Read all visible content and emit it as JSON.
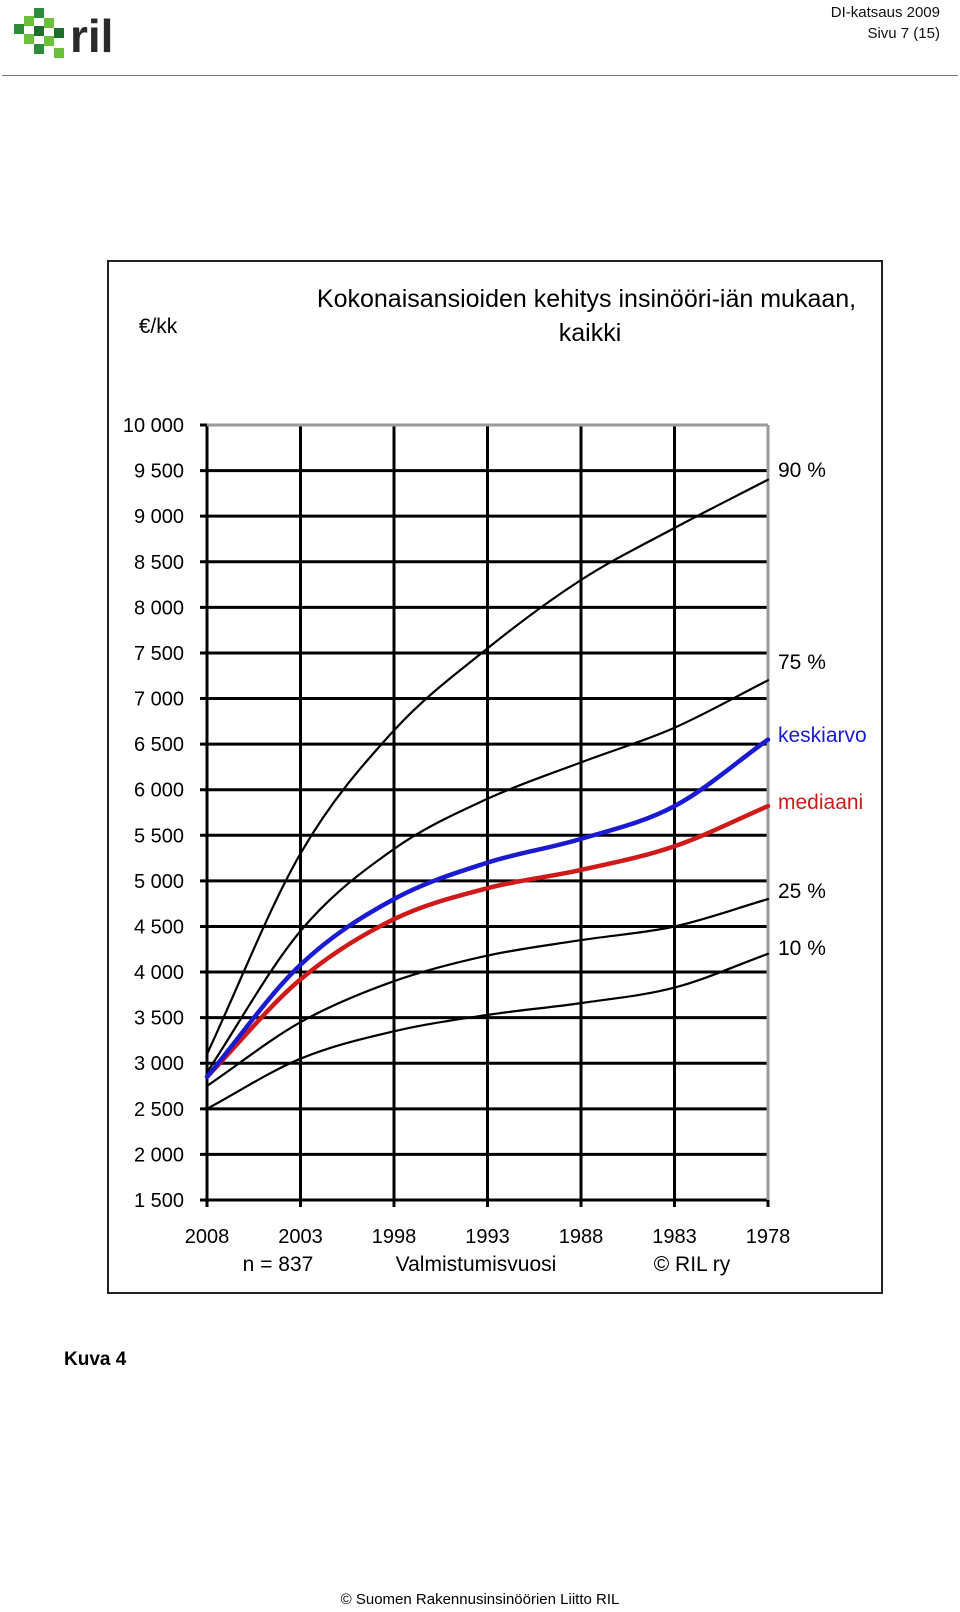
{
  "header": {
    "logo_text": "ril",
    "doc_title": "DI-katsaus 2009",
    "page_label": "Sivu 7 (15)"
  },
  "chart_data": {
    "type": "line",
    "title": "Kokonaisansioiden kehitys insinööri-iän mukaan, kaikki",
    "ylabel": "€/kk",
    "xlabel": "Valmistumisvuosi",
    "notes": [
      "n = 837",
      "© RIL ry"
    ],
    "x_ticks": [
      "2008",
      "2003",
      "1998",
      "1993",
      "1988",
      "1983",
      "1978"
    ],
    "x": [
      2008,
      2003,
      1998,
      1993,
      1988,
      1983,
      1978
    ],
    "xlim": [
      2008,
      1978
    ],
    "ylim": [
      1500,
      10000
    ],
    "y_ticks": [
      1500,
      2000,
      2500,
      3000,
      3500,
      4000,
      4500,
      5000,
      5500,
      6000,
      6500,
      7000,
      7500,
      8000,
      8500,
      9000,
      9500,
      10000
    ],
    "y_tick_labels": [
      "1 500",
      "2 000",
      "2 500",
      "3 000",
      "3 500",
      "4 000",
      "4 500",
      "5 000",
      "5 500",
      "6 000",
      "6 500",
      "7 000",
      "7 500",
      "8 000",
      "8 500",
      "9 000",
      "9 500",
      "10 000"
    ],
    "grid": true,
    "legend": "right",
    "series": [
      {
        "name": "90 %",
        "color": "#000000",
        "values": [
          3100,
          5300,
          6650,
          7550,
          8300,
          8870,
          9400
        ]
      },
      {
        "name": "75 %",
        "color": "#000000",
        "values": [
          2900,
          4450,
          5350,
          5900,
          6300,
          6680,
          7200
        ]
      },
      {
        "name": "keskiarvo",
        "color": "#1a1ad0",
        "values": [
          2850,
          4080,
          4800,
          5200,
          5460,
          5820,
          6550
        ]
      },
      {
        "name": "mediaani",
        "color": "#d01a1a",
        "values": [
          2850,
          3920,
          4580,
          4920,
          5120,
          5380,
          5820
        ]
      },
      {
        "name": "25 %",
        "color": "#000000",
        "values": [
          2750,
          3450,
          3900,
          4180,
          4350,
          4500,
          4800
        ]
      },
      {
        "name": "10 %",
        "color": "#000000",
        "values": [
          2500,
          3050,
          3350,
          3530,
          3660,
          3830,
          4200
        ]
      }
    ]
  },
  "caption": "Kuva 4",
  "footer": "© Suomen Rakennusinsinöörien Liitto RIL"
}
